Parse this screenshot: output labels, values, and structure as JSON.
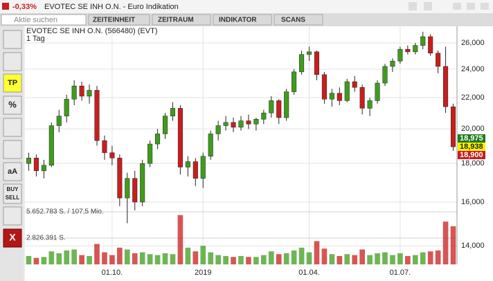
{
  "header": {
    "change": "-0,33%",
    "title": "EVOTEC SE INH O.N. - Euro Indikation"
  },
  "toolbar": {
    "search": "Aktie suchen",
    "menus": [
      "ZEITEINHEIT",
      "ZEITRAUM",
      "INDIKATOR",
      "SCANS"
    ]
  },
  "sidebar": {
    "tp": "TP",
    "percent": "%",
    "text": "aA",
    "buy": "BUY",
    "sell": "SELL",
    "close": "X"
  },
  "chart_data": {
    "type": "candlestick",
    "title": "EVOTEC SE INH O.N. (566480) (EVT)",
    "subtitle": "1 Tag",
    "log_scale": true,
    "grid": true,
    "up_color": "#3f9c1c",
    "down_color": "#c81e1e",
    "categories": [
      null,
      null,
      null,
      null,
      null,
      null,
      null,
      null,
      null,
      null,
      null,
      "01.10.",
      null,
      null,
      null,
      null,
      null,
      null,
      null,
      null,
      null,
      null,
      null,
      "2019",
      null,
      null,
      null,
      null,
      null,
      null,
      null,
      null,
      null,
      null,
      null,
      null,
      null,
      "01.04.",
      null,
      null,
      null,
      null,
      null,
      null,
      null,
      null,
      null,
      null,
      null,
      "01.07.",
      null,
      null,
      null,
      null,
      null,
      null,
      null
    ],
    "open": [
      18000,
      18300,
      17600,
      17900,
      20200,
      20800,
      21900,
      22800,
      22100,
      22500,
      19300,
      18600,
      18300,
      16200,
      17200,
      16000,
      18000,
      19100,
      19700,
      20800,
      21300,
      17800,
      18100,
      17200,
      18400,
      19700,
      20200,
      20400,
      20100,
      20500,
      20300,
      20600,
      21000,
      21800,
      20700,
      22400,
      23800,
      25100,
      25300,
      23600,
      21900,
      22300,
      21800,
      23100,
      22700,
      21300,
      21800,
      23000,
      24200,
      24600,
      25500,
      25300,
      25800,
      26500,
      25200,
      24200,
      21400
    ],
    "high": [
      18600,
      18500,
      18200,
      20400,
      21200,
      22200,
      23200,
      23100,
      22900,
      22800,
      19600,
      19000,
      18500,
      17500,
      17600,
      18200,
      19300,
      20000,
      21000,
      21700,
      21500,
      18400,
      18300,
      18600,
      19900,
      20500,
      20800,
      20700,
      20800,
      20900,
      20700,
      21200,
      22100,
      21900,
      22600,
      24000,
      25400,
      25700,
      25400,
      23800,
      22600,
      22700,
      23300,
      23500,
      22900,
      22000,
      23200,
      24400,
      24800,
      25700,
      25800,
      26000,
      26900,
      26700,
      25400,
      25700,
      21600
    ],
    "low": [
      17600,
      17300,
      17200,
      17800,
      19800,
      20400,
      21500,
      21800,
      21600,
      19000,
      18200,
      17900,
      15800,
      15000,
      15600,
      15800,
      17800,
      18800,
      19400,
      20500,
      17400,
      17300,
      16800,
      16700,
      18200,
      19300,
      19900,
      19800,
      19900,
      20000,
      19900,
      20300,
      20700,
      20300,
      20500,
      22200,
      23600,
      24600,
      23200,
      21600,
      21400,
      21500,
      21700,
      22400,
      20900,
      20800,
      21600,
      22800,
      23800,
      24400,
      25100,
      25100,
      25500,
      25000,
      23700,
      21000,
      18700
    ],
    "close": [
      18300,
      17600,
      17900,
      20200,
      20800,
      21900,
      22800,
      22100,
      22500,
      19300,
      18600,
      18300,
      16200,
      17200,
      16000,
      18000,
      19100,
      19700,
      20800,
      21300,
      17800,
      18100,
      17200,
      18400,
      19700,
      20200,
      20400,
      20100,
      20500,
      20300,
      20600,
      21000,
      21800,
      20700,
      22400,
      23800,
      25100,
      25300,
      23600,
      21900,
      22300,
      21800,
      23100,
      22700,
      21300,
      21800,
      23000,
      24200,
      24600,
      25500,
      25300,
      25800,
      26500,
      25200,
      24200,
      21400,
      18938
    ],
    "volume": [
      900000,
      700000,
      800000,
      1400000,
      1200000,
      1500000,
      1600000,
      1000000,
      900000,
      2200000,
      1300000,
      1000000,
      1800000,
      1600000,
      1200000,
      1300000,
      1100000,
      1000000,
      1200000,
      1100000,
      5300000,
      1800000,
      1400000,
      2000000,
      1300000,
      1000000,
      900000,
      800000,
      900000,
      800000,
      800000,
      1000000,
      1400000,
      1100000,
      1200000,
      1500000,
      1800000,
      1300000,
      2500000,
      1700000,
      1100000,
      900000,
      1100000,
      1000000,
      1600000,
      1000000,
      1200000,
      1300000,
      1000000,
      1200000,
      900000,
      1000000,
      1300000,
      1400000,
      1500000,
      4600000,
      4100000
    ],
    "ylim": [
      13230,
      27350
    ],
    "yticks": [
      {
        "value": 14000,
        "label": "14,000"
      },
      {
        "value": 16000,
        "label": "16,000"
      },
      {
        "value": 18000,
        "label": "18,000"
      },
      {
        "value": 20000,
        "label": "20,000"
      },
      {
        "value": 22000,
        "label": "22,000"
      },
      {
        "value": 24000,
        "label": "24,000"
      },
      {
        "value": 26000,
        "label": "26,000"
      }
    ],
    "volume_ylim": [
      0,
      5652783
    ],
    "volume_ticks": [
      {
        "value": 5652783,
        "label": "5.652.783 S. / 107,5 Mio."
      },
      {
        "value": 2826391,
        "label": "2.826.391 S."
      }
    ],
    "price_tags": [
      {
        "value": 18975,
        "label": "18,975",
        "color": "#1f7a1f"
      },
      {
        "value": 18938,
        "label": "18,938",
        "color": "#f5f500"
      },
      {
        "value": 18900,
        "label": "18,900",
        "color": "#c81e1e"
      }
    ]
  }
}
